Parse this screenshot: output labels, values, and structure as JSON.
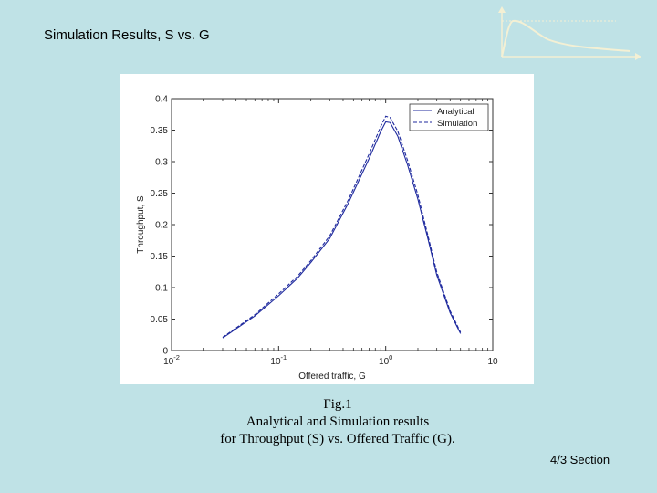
{
  "slide": {
    "title": "Simulation Results, S vs. G",
    "section_label": "4/3 Section"
  },
  "caption": {
    "line1": "Fig.1",
    "line2": "Analytical and Simulation results",
    "line3": "for Throughput (S) vs. Offered Traffic (G)."
  },
  "chart_data": {
    "type": "line",
    "title": "",
    "xlabel": "Offered traffic, G",
    "ylabel": "Throughput, S",
    "xscale": "log",
    "xlim": [
      0.01,
      10
    ],
    "ylim": [
      0,
      0.4
    ],
    "x_ticks": [
      {
        "value": 0.01,
        "base": "10",
        "exp": "-2"
      },
      {
        "value": 0.1,
        "base": "10",
        "exp": "-1"
      },
      {
        "value": 1,
        "base": "10",
        "exp": "0"
      },
      {
        "value": 10,
        "base": "10",
        "exp": ""
      }
    ],
    "y_ticks": [
      "0",
      "0.05",
      "0.1",
      "0.15",
      "0.2",
      "0.25",
      "0.3",
      "0.35",
      "0.4"
    ],
    "legend_position": "top-right",
    "series": [
      {
        "name": "Analytical",
        "style": "solid",
        "color": "#1f2a9e",
        "x": [
          0.03,
          0.06,
          0.1,
          0.15,
          0.2,
          0.3,
          0.45,
          0.7,
          0.9,
          1.0,
          1.1,
          1.3,
          1.6,
          2.0,
          2.5,
          3.0,
          4.0,
          5.0
        ],
        "y": [
          0.02,
          0.055,
          0.087,
          0.115,
          0.14,
          0.178,
          0.235,
          0.305,
          0.348,
          0.363,
          0.362,
          0.34,
          0.295,
          0.24,
          0.175,
          0.12,
          0.06,
          0.027
        ]
      },
      {
        "name": "Simulation",
        "style": "dashed",
        "color": "#1f2a9e",
        "x": [
          0.03,
          0.06,
          0.1,
          0.15,
          0.2,
          0.3,
          0.45,
          0.7,
          0.9,
          1.0,
          1.1,
          1.3,
          1.6,
          2.0,
          2.5,
          3.0,
          4.0,
          5.0
        ],
        "y": [
          0.021,
          0.057,
          0.09,
          0.118,
          0.143,
          0.182,
          0.24,
          0.312,
          0.356,
          0.372,
          0.37,
          0.348,
          0.302,
          0.247,
          0.18,
          0.125,
          0.063,
          0.029
        ]
      }
    ]
  }
}
